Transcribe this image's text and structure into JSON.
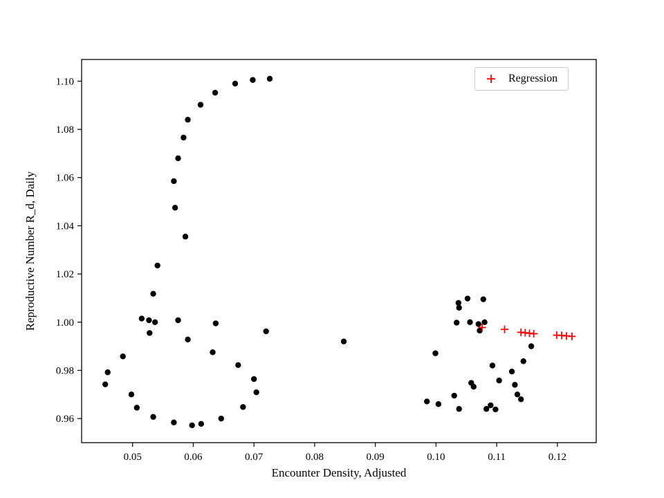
{
  "chart_data": {
    "type": "scatter",
    "title": "",
    "xlabel": "Encounter Density, Adjusted",
    "ylabel": "Reproductive Number R_d, Daily",
    "xlim": [
      0.0416,
      0.1264
    ],
    "ylim": [
      0.95,
      1.109
    ],
    "xticks": [
      0.05,
      0.06,
      0.07,
      0.08,
      0.09,
      0.1,
      0.11,
      0.12
    ],
    "xtick_labels": [
      "0.05",
      "0.06",
      "0.07",
      "0.08",
      "0.09",
      "0.10",
      "0.11",
      "0.12"
    ],
    "yticks": [
      0.96,
      0.98,
      1.0,
      1.02,
      1.04,
      1.06,
      1.08,
      1.1
    ],
    "ytick_labels": [
      "0.96",
      "0.98",
      "1.00",
      "1.02",
      "1.04",
      "1.06",
      "1.08",
      "1.10"
    ],
    "grid": false,
    "frame_color": "#000000",
    "background_color": "#ffffff",
    "legend": {
      "position": "upper right",
      "entries": [
        {
          "label": "Regression",
          "marker": "plus",
          "color": "#ff0000"
        }
      ]
    },
    "series": [
      {
        "name": "observations",
        "marker": "circle",
        "color": "#000000",
        "points": [
          [
            0.0726,
            1.101
          ],
          [
            0.0698,
            1.1005
          ],
          [
            0.0669,
            1.099
          ],
          [
            0.0636,
            1.0952
          ],
          [
            0.0612,
            1.0902
          ],
          [
            0.0591,
            1.084
          ],
          [
            0.0584,
            1.0766
          ],
          [
            0.0575,
            1.068
          ],
          [
            0.0568,
            1.0585
          ],
          [
            0.057,
            1.0475
          ],
          [
            0.0587,
            1.0355
          ],
          [
            0.0541,
            1.0235
          ],
          [
            0.0534,
            1.0118
          ],
          [
            0.0515,
            1.0015
          ],
          [
            0.0527,
            1.0008
          ],
          [
            0.0537,
            1.0
          ],
          [
            0.0575,
            1.0008
          ],
          [
            0.0528,
            0.9955
          ],
          [
            0.0591,
            0.9928
          ],
          [
            0.0637,
            0.9995
          ],
          [
            0.072,
            0.9962
          ],
          [
            0.0632,
            0.9875
          ],
          [
            0.0484,
            0.9858
          ],
          [
            0.0459,
            0.9792
          ],
          [
            0.0455,
            0.9742
          ],
          [
            0.0674,
            0.9822
          ],
          [
            0.07,
            0.9764
          ],
          [
            0.0498,
            0.97
          ],
          [
            0.0704,
            0.9709
          ],
          [
            0.0507,
            0.9645
          ],
          [
            0.0682,
            0.9648
          ],
          [
            0.0534,
            0.9607
          ],
          [
            0.0646,
            0.96
          ],
          [
            0.0568,
            0.9584
          ],
          [
            0.0613,
            0.9578
          ],
          [
            0.0598,
            0.9572
          ],
          [
            0.0848,
            0.992
          ],
          [
            0.0999,
            0.9871
          ],
          [
            0.0985,
            0.9671
          ],
          [
            0.1004,
            0.966
          ],
          [
            0.103,
            0.9695
          ],
          [
            0.1038,
            0.964
          ],
          [
            0.1034,
            0.9998
          ],
          [
            0.1037,
            1.008
          ],
          [
            0.1038,
            1.006
          ],
          [
            0.1052,
            1.0098
          ],
          [
            0.1056,
            1.0
          ],
          [
            0.1062,
            0.9732
          ],
          [
            0.1058,
            0.9748
          ],
          [
            0.107,
            0.9992
          ],
          [
            0.1072,
            0.9965
          ],
          [
            0.1078,
            1.0095
          ],
          [
            0.108,
            1.0
          ],
          [
            0.1083,
            0.964
          ],
          [
            0.109,
            0.9655
          ],
          [
            0.1093,
            0.982
          ],
          [
            0.1098,
            0.9638
          ],
          [
            0.1104,
            0.9758
          ],
          [
            0.1125,
            0.9795
          ],
          [
            0.113,
            0.974
          ],
          [
            0.1134,
            0.97
          ],
          [
            0.114,
            0.968
          ],
          [
            0.1144,
            0.9838
          ],
          [
            0.1157,
            0.99
          ]
        ]
      },
      {
        "name": "Regression",
        "marker": "plus",
        "color": "#ff0000",
        "points": [
          [
            0.1076,
            0.9978
          ],
          [
            0.1113,
            0.997
          ],
          [
            0.114,
            0.9958
          ],
          [
            0.1147,
            0.9956
          ],
          [
            0.1154,
            0.9954
          ],
          [
            0.1161,
            0.9952
          ],
          [
            0.1199,
            0.9946
          ],
          [
            0.1207,
            0.9945
          ],
          [
            0.1215,
            0.9943
          ],
          [
            0.1224,
            0.9941
          ]
        ]
      }
    ]
  }
}
